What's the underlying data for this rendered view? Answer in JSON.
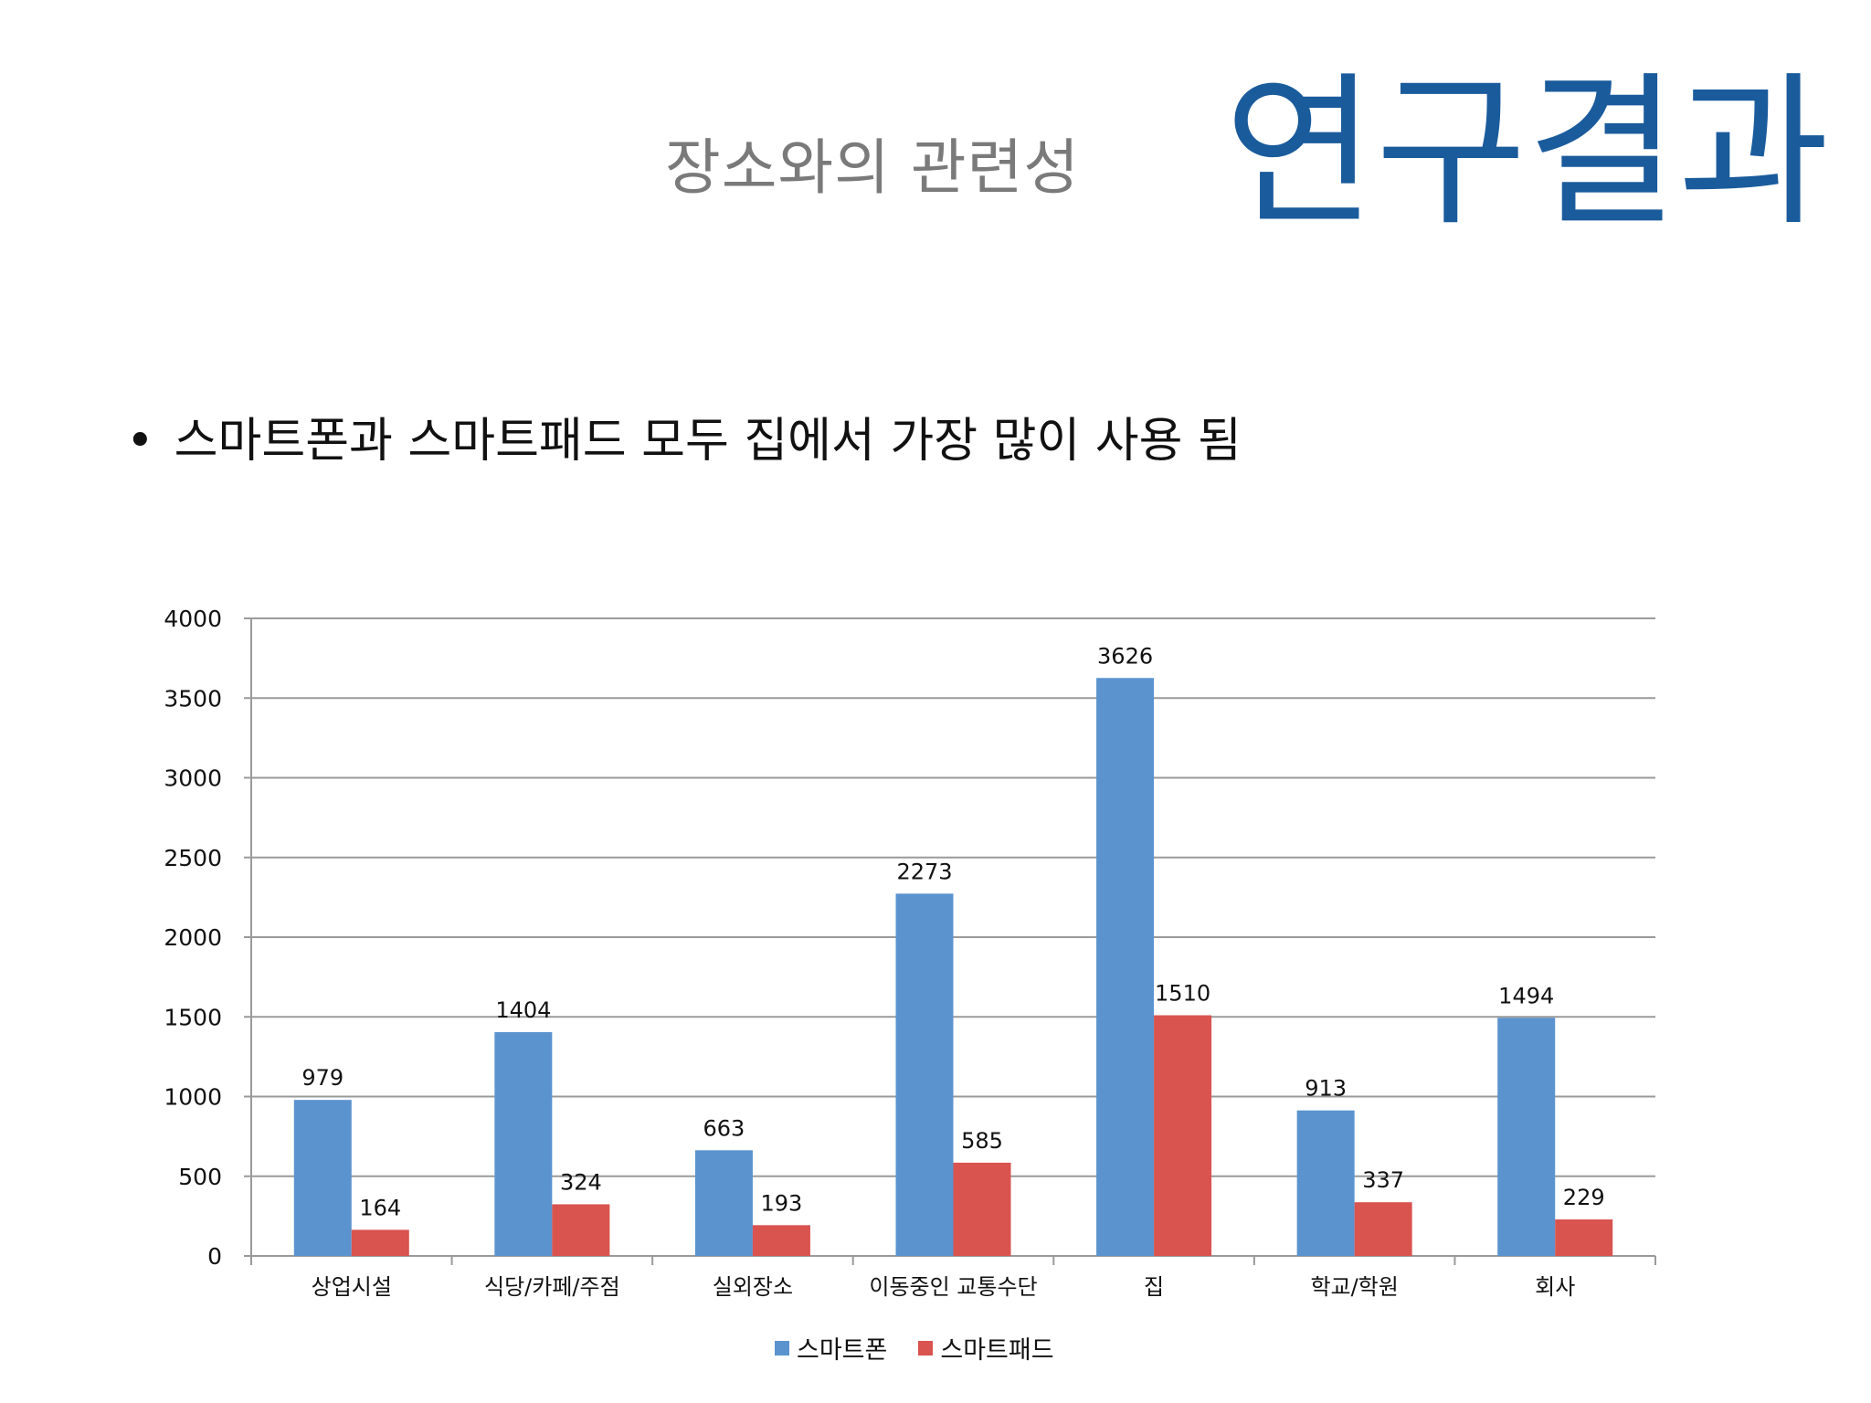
{
  "slide": {
    "subtitle": "장소와의 관련성",
    "title": "연구결과",
    "bullet": "•",
    "bullet_text": "스마트폰과 스마트패드 모두 집에서 가장 많이 사용 됨"
  },
  "chart_data": {
    "type": "bar",
    "categories": [
      "상업시설",
      "식당/카페/주점",
      "실외장소",
      "이동중인 교통수단",
      "집",
      "학교/학원",
      "회사"
    ],
    "series": [
      {
        "name": "스마트폰",
        "values": [
          979,
          1404,
          663,
          2273,
          3626,
          913,
          1494
        ],
        "color": "#5b93cf"
      },
      {
        "name": "스마트패드",
        "values": [
          164,
          324,
          193,
          585,
          1510,
          337,
          229
        ],
        "color": "#d9534f"
      }
    ],
    "yticks": [
      "0",
      "500",
      "1000",
      "1500",
      "2000",
      "2500",
      "3000",
      "3500",
      "4000"
    ],
    "ylim": [
      0,
      4000
    ],
    "grid": true,
    "legend": "bottom"
  }
}
